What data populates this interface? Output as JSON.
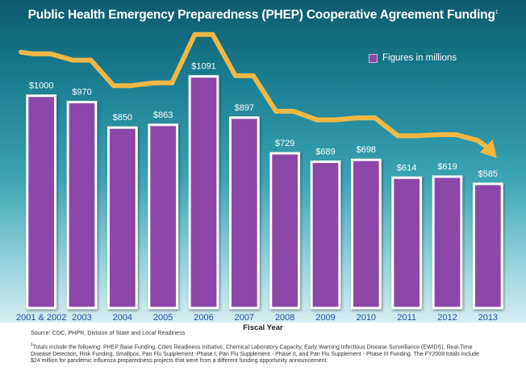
{
  "title": "Public Health Emergency Preparedness (PHEP) Cooperative Agreement Funding",
  "title_footnote_mark": "1",
  "legend": {
    "label": "Figures in millions",
    "color": "#8c47a8"
  },
  "colors": {
    "bar": "#8c47a8",
    "bar_border": "#ffffff",
    "trend": "#f2b844",
    "label": "#1a4f9c"
  },
  "source": "Source: CDC, PHPR, Division of State and Local Readiness",
  "footnote": {
    "mark": "1",
    "text": "Totals include the following:  PHEP Base Funding, Cities Readiness Initiative, Chemical Laboratory Capacity, Early Warning Infectious Disease Surveillance (EWIDS), Real-Time Disease Detection, Risk Funding, Smallpox, Pan Flu Supplement -Phase I, Pan Flu Supplement - Phase II, and Pan Flu Supplement - Phase III Funding. The FY2008 totals include $24 million for pandemic influenza preparedness projects that were from a different funding opportunity announcement."
  },
  "chart_data": {
    "type": "bar",
    "title": "Public Health Emergency Preparedness (PHEP) Cooperative Agreement Funding",
    "xlabel": "Fiscal Year",
    "ylabel": "",
    "categories": [
      "2001 & 2002",
      "2003",
      "2004",
      "2005",
      "2006",
      "2007",
      "2008",
      "2009",
      "2010",
      "2011",
      "2012",
      "2013"
    ],
    "series": [
      {
        "name": "Figures in millions",
        "values": [
          1000,
          970,
          850,
          863,
          1091,
          897,
          729,
          689,
          698,
          614,
          619,
          585
        ],
        "labels": [
          "$1000",
          "$970",
          "$850",
          "$863",
          "$1091",
          "$897",
          "$729",
          "$689",
          "$698",
          "$614",
          "$619",
          "$585"
        ]
      }
    ],
    "ylim": [
      0,
      1200
    ],
    "grid": false,
    "legend_position": "top-right",
    "trend_arrow": true
  }
}
